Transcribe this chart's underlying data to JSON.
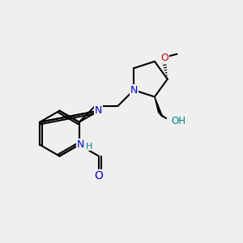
{
  "bg_color": "#efefef",
  "bond_color": "#000000",
  "N_color": "#0000cc",
  "O_color": "#cc0000",
  "O_teal_color": "#008080",
  "lw": 1.5,
  "figsize": [
    3.0,
    3.0
  ],
  "dpi": 100,
  "xlim": [
    0,
    10
  ],
  "ylim": [
    0,
    10
  ]
}
